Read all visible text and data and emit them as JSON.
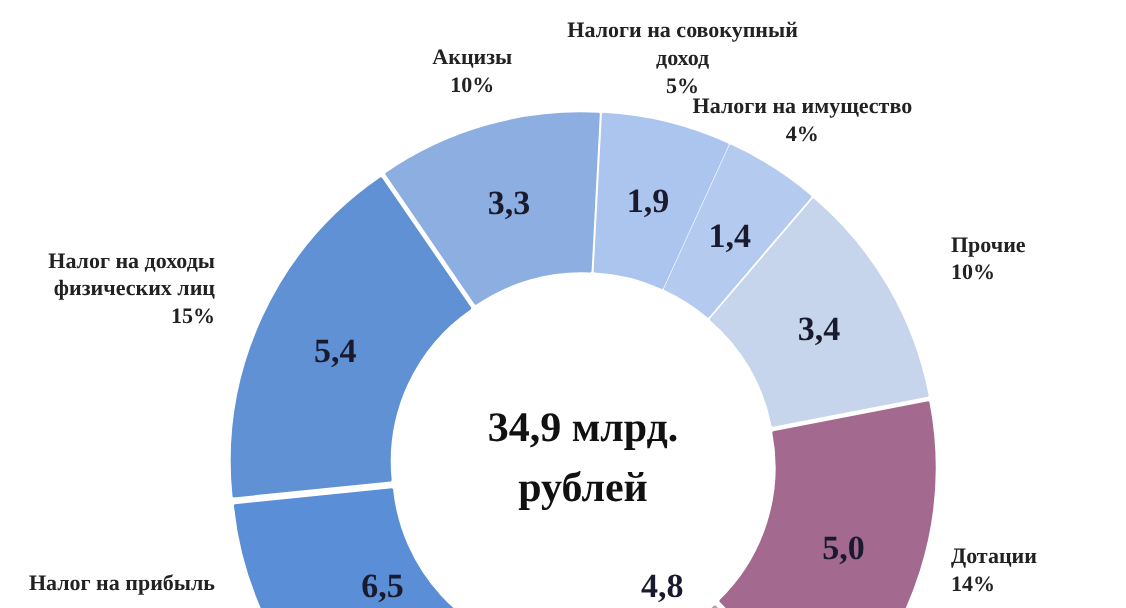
{
  "chart_data": {
    "type": "donut",
    "categories": [
      "Налоги на совокупный\nдоход\n5%",
      "Налоги на имущество\n4%",
      "Прочие\n10%",
      "Дотации\n14%",
      null,
      "Налог на прибыль",
      "Налог на доходы\nфизических лиц\n15%",
      "Акцизы\n10%"
    ],
    "values": [
      1.9,
      1.4,
      3.4,
      5.0,
      4.8,
      6.5,
      5.4,
      3.3
    ],
    "value_labels": [
      "1,9",
      "1,4",
      "3,4",
      "5,0",
      "4,8",
      "6,5",
      "5,4",
      "3,3"
    ],
    "colors": [
      "#abc5ef",
      "#b4caee",
      "#c6d4ec",
      "#a3698f",
      "#c294b5",
      "#5a8ed6",
      "#5f91d4",
      "#8caee0"
    ],
    "annotations": [
      "34,9 млрд.\nрублей"
    ]
  }
}
